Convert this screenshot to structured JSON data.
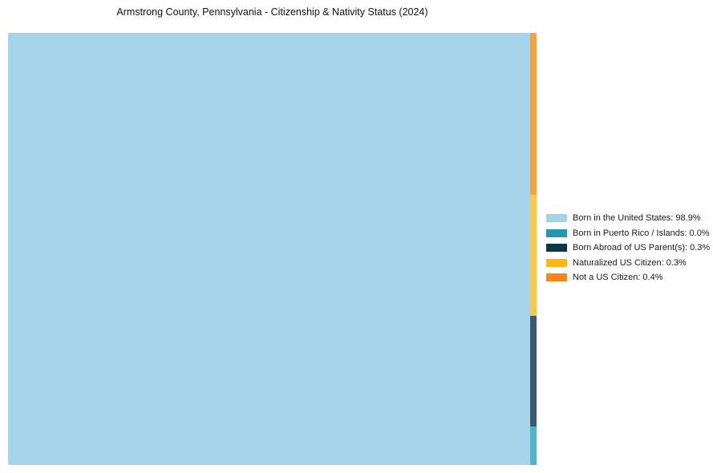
{
  "page": {
    "background": "#ffffff"
  },
  "chart_data": {
    "type": "treemap",
    "title": "Armstrong County, Pennsylvania - Citizenship & Nativity Status (2024)",
    "legend_position": "right-middle",
    "grid": false,
    "categories": [
      "Born in the United States",
      "Born in Puerto Rico / Islands",
      "Born Abroad of US Parent(s)",
      "Naturalized US Citizen",
      "Not a US Citizen"
    ],
    "values_percent": [
      98.9,
      0.0,
      0.3,
      0.3,
      0.4
    ],
    "legend": [
      {
        "label": "Born in the United States: 98.9%",
        "color": "#a6d2e9"
      },
      {
        "label": "Born in Puerto Rico / Islands: 0.0%",
        "color": "#2697b2"
      },
      {
        "label": "Born Abroad of US Parent(s): 0.3%",
        "color": "#0d3549"
      },
      {
        "label": "Naturalized US Citizen: 0.3%",
        "color": "#fdb713"
      },
      {
        "label": "Not a US Citizen: 0.4%",
        "color": "#f5851c"
      }
    ],
    "treemap": {
      "main": {
        "name": "Born in the United States",
        "value_percent": 98.9,
        "color": "#a6d4ec",
        "width_frac": 0.988
      },
      "side_column": [
        {
          "name": "Not a US Citizen",
          "value_percent": 0.4,
          "color": "#f9a240",
          "height_frac": 0.374
        },
        {
          "name": "Naturalized US Citizen",
          "value_percent": 0.3,
          "color": "#fdc74b",
          "height_frac": 0.281
        },
        {
          "name": "Born Abroad of US Parent(s)",
          "value_percent": 0.3,
          "color": "#3b5a6f",
          "height_frac": 0.256
        },
        {
          "name": "Born in Puerto Rico / Islands",
          "value_percent": 0.0,
          "color": "#4fb3c9",
          "height_frac": 0.089
        }
      ]
    }
  }
}
